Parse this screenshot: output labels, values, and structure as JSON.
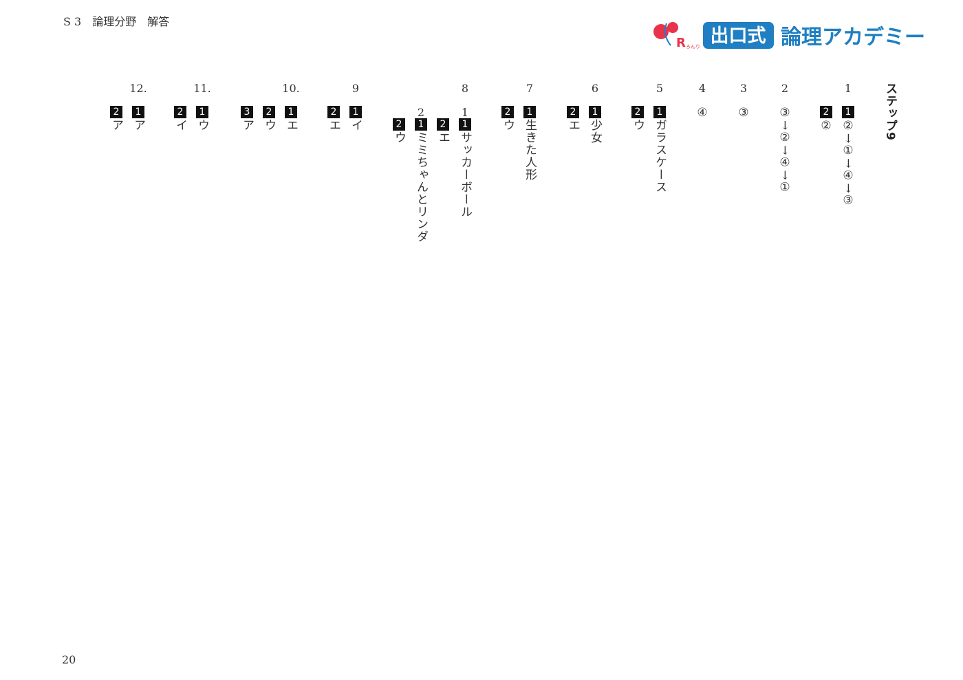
{
  "header": {
    "section": "S 3　論理分野　解答",
    "logo": {
      "mark": "R",
      "mark_sub": "ろんり",
      "badge": "出口式",
      "name": "論理アカデミー"
    }
  },
  "step_title": "ステップ9",
  "problems": [
    {
      "number": "1",
      "answers": [
        {
          "box": "1",
          "text": "②→①→④→③"
        },
        {
          "box": "2",
          "text": "②"
        }
      ]
    },
    {
      "number": "2",
      "answers": [
        {
          "text": "③→②→④→①"
        }
      ]
    },
    {
      "number": "3",
      "answers": [
        {
          "text": "③"
        }
      ]
    },
    {
      "number": "4",
      "answers": [
        {
          "text": "④"
        }
      ]
    },
    {
      "number": "5",
      "answers": [
        {
          "box": "1",
          "text": "ガラスケース"
        },
        {
          "box": "2",
          "text": "ウ"
        }
      ]
    },
    {
      "number": "6",
      "answers": [
        {
          "box": "1",
          "text": "少女"
        },
        {
          "box": "2",
          "text": "エ"
        }
      ]
    },
    {
      "number": "7",
      "answers": [
        {
          "box": "1",
          "text": "生きた人形"
        },
        {
          "box": "2",
          "text": "ウ"
        }
      ]
    },
    {
      "number": "8",
      "parts": [
        {
          "number": "1",
          "answers": [
            {
              "box": "1",
              "text": "サッカーボール"
            },
            {
              "box": "2",
              "text": "エ"
            }
          ]
        },
        {
          "number": "2",
          "answers": [
            {
              "box": "1",
              "text": "ミミちゃんとリンダ"
            },
            {
              "box": "2",
              "text": "ウ"
            }
          ]
        }
      ]
    },
    {
      "number": "9",
      "answers": [
        {
          "box": "1",
          "text": "イ"
        },
        {
          "box": "2",
          "text": "エ"
        }
      ]
    },
    {
      "number": "10.",
      "answers": [
        {
          "box": "1",
          "text": "エ"
        },
        {
          "box": "2",
          "text": "ウ"
        },
        {
          "box": "3",
          "text": "ア"
        }
      ]
    },
    {
      "number": "11.",
      "answers": [
        {
          "box": "1",
          "text": "ウ"
        },
        {
          "box": "2",
          "text": "イ"
        }
      ]
    },
    {
      "number": "12.",
      "answers": [
        {
          "box": "1",
          "text": "ア"
        },
        {
          "box": "2",
          "text": "ア"
        }
      ]
    }
  ],
  "footer": {
    "page": "20"
  }
}
